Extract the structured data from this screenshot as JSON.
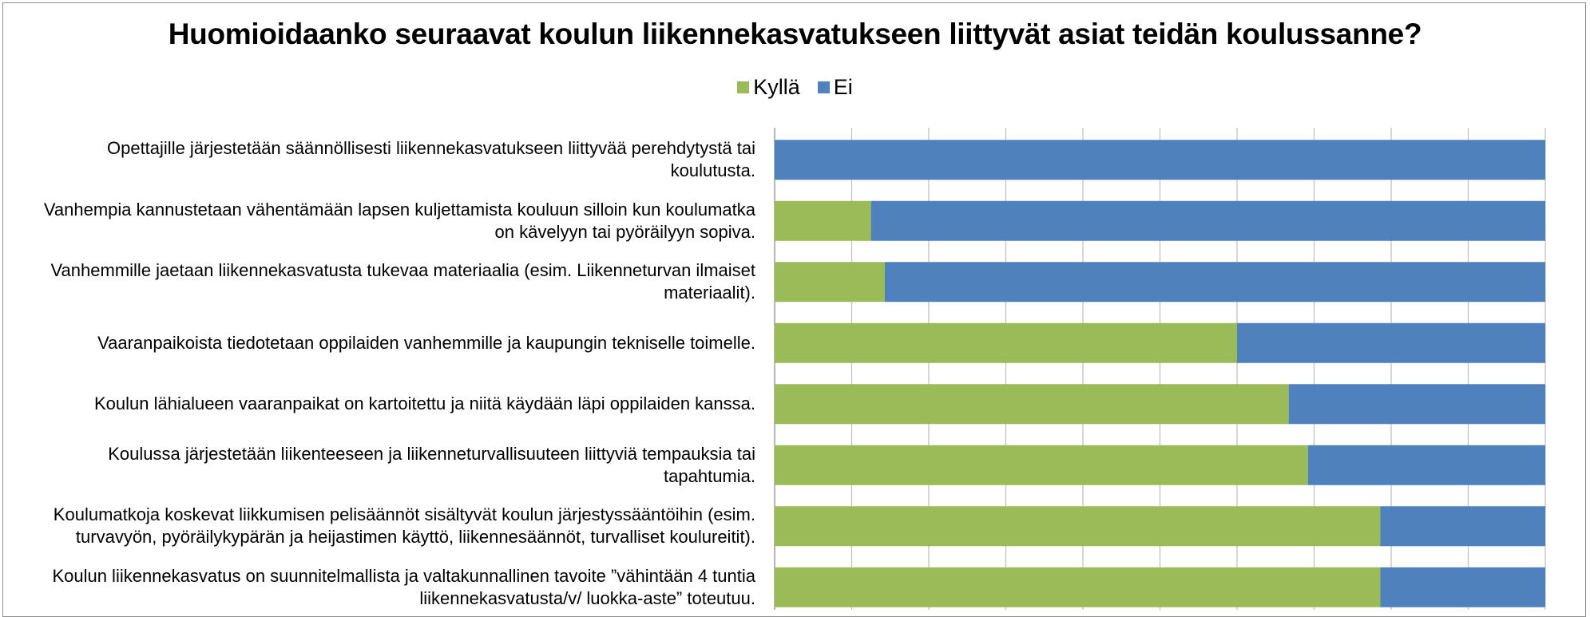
{
  "chart_data": {
    "type": "bar",
    "orientation": "horizontal",
    "stacked": "percent",
    "title": "Huomioidaanko seuraavat koulun liikennekasvatukseen liittyvät asiat teidän koulussanne?",
    "legend_position": "top",
    "grid": true,
    "xlim": [
      0,
      100
    ],
    "categories": [
      "Opettajille järjestetään säännöllisesti liikennekasvatukseen liittyvää perehdytystä tai koulutusta.",
      "Vanhempia kannustetaan vähentämään lapsen kuljettamista kouluun silloin kun koulumatka on kävelyyn tai pyöräilyyn sopiva.",
      "Vanhemmille jaetaan liikennekasvatusta tukevaa materiaalia (esim. Liikenneturvan ilmaiset materiaalit).",
      "Vaaranpaikoista tiedotetaan oppilaiden vanhemmille ja kaupungin tekniselle toimelle.",
      "Koulun lähialueen vaaranpaikat on kartoitettu ja niitä käydään läpi oppilaiden kanssa.",
      "Koulussa järjestetään liikenteeseen ja liikenneturvallisuuteen liittyviä tempauksia tai tapahtumia.",
      "Koulumatkoja koskevat liikkumisen pelisäännöt sisältyvät koulun järjestyssääntöihin (esim. turvavyön, pyöräilykypärän ja heijastimen käyttö, liikennesäännöt, turvalliset koulureitit).",
      "Koulun liikennekasvatus on suunnitelmallista ja valtakunnallinen tavoite ”vähintään 4 tuntia liikennekasvatusta/v/ luokka-aste” toteutuu."
    ],
    "label_lines": [
      [
        "Opettajille järjestetään säännöllisesti liikennekasvatukseen liittyvää perehdytystä tai",
        "koulutusta."
      ],
      [
        "Vanhempia kannustetaan vähentämään lapsen kuljettamista kouluun silloin kun koulumatka",
        "on kävelyyn tai pyöräilyyn sopiva."
      ],
      [
        "Vanhemmille jaetaan liikennekasvatusta tukevaa materiaalia (esim. Liikenneturvan ilmaiset",
        "materiaalit)."
      ],
      [
        "Vaaranpaikoista tiedotetaan oppilaiden vanhemmille ja kaupungin tekniselle toimelle."
      ],
      [
        "Koulun lähialueen vaaranpaikat on kartoitettu ja niitä käydään läpi oppilaiden kanssa."
      ],
      [
        "Koulussa järjestetään liikenteeseen ja liikenneturvallisuuteen liittyviä tempauksia tai",
        "tapahtumia."
      ],
      [
        "Koulumatkoja koskevat liikkumisen pelisäännöt sisältyvät koulun järjestyssääntöihin (esim.",
        "turvavyön, pyöräilykypärän ja heijastimen käyttö, liikennesäännöt, turvalliset koulureitit)."
      ],
      [
        "Koulun liikennekasvatus on suunnitelmallista ja valtakunnallinen tavoite ”vähintään 4 tuntia",
        "liikennekasvatusta/v/ luokka-aste” toteutuu."
      ]
    ],
    "series": [
      {
        "name": "Kyllä",
        "color": "#9BBB59",
        "values": [
          0,
          12.5,
          14.3,
          60,
          66.7,
          69.2,
          78.6,
          78.6
        ]
      },
      {
        "name": "Ei",
        "color": "#4F81BD",
        "values": [
          100,
          87.5,
          85.7,
          40,
          33.3,
          30.8,
          21.4,
          21.4
        ]
      }
    ]
  }
}
